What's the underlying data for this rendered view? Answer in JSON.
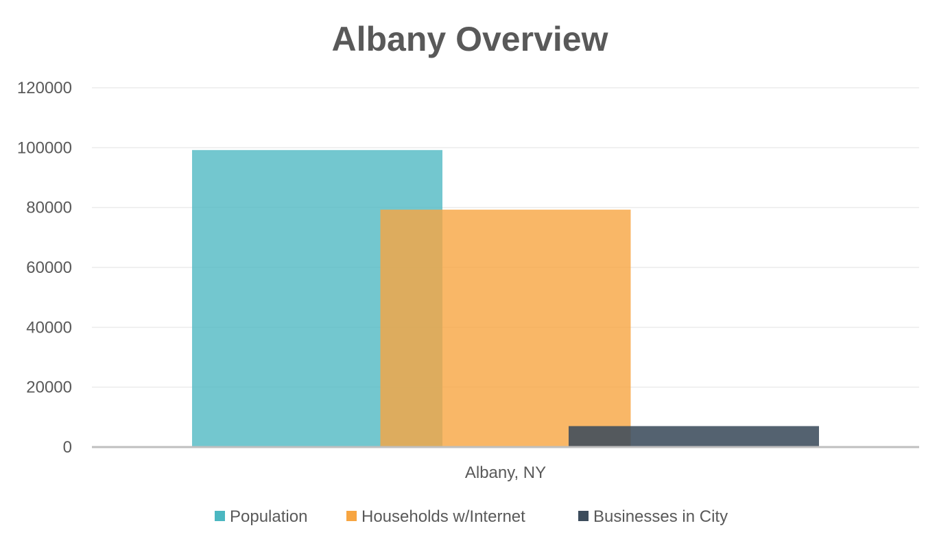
{
  "chart_data": {
    "type": "bar",
    "title": "Albany Overview",
    "xlabel": "",
    "ylabel": "",
    "categories": [
      "Albany, NY"
    ],
    "ylim": [
      0,
      120000
    ],
    "yticks": [
      0,
      20000,
      40000,
      60000,
      80000,
      100000,
      120000
    ],
    "ytick_labels": [
      "0",
      "20000",
      "40000",
      "60000",
      "80000",
      "100000",
      "120000"
    ],
    "grid": true,
    "legend_position": "bottom",
    "series": [
      {
        "name": "Population",
        "values": [
          99200
        ],
        "color": "#4bb7c1",
        "opacity": 0.78
      },
      {
        "name": "Households w/Internet",
        "values": [
          79300
        ],
        "color": "#f7a541",
        "opacity": 0.8
      },
      {
        "name": "Businesses in City",
        "values": [
          7000
        ],
        "color": "#3c4c5c",
        "opacity": 0.88
      }
    ]
  }
}
